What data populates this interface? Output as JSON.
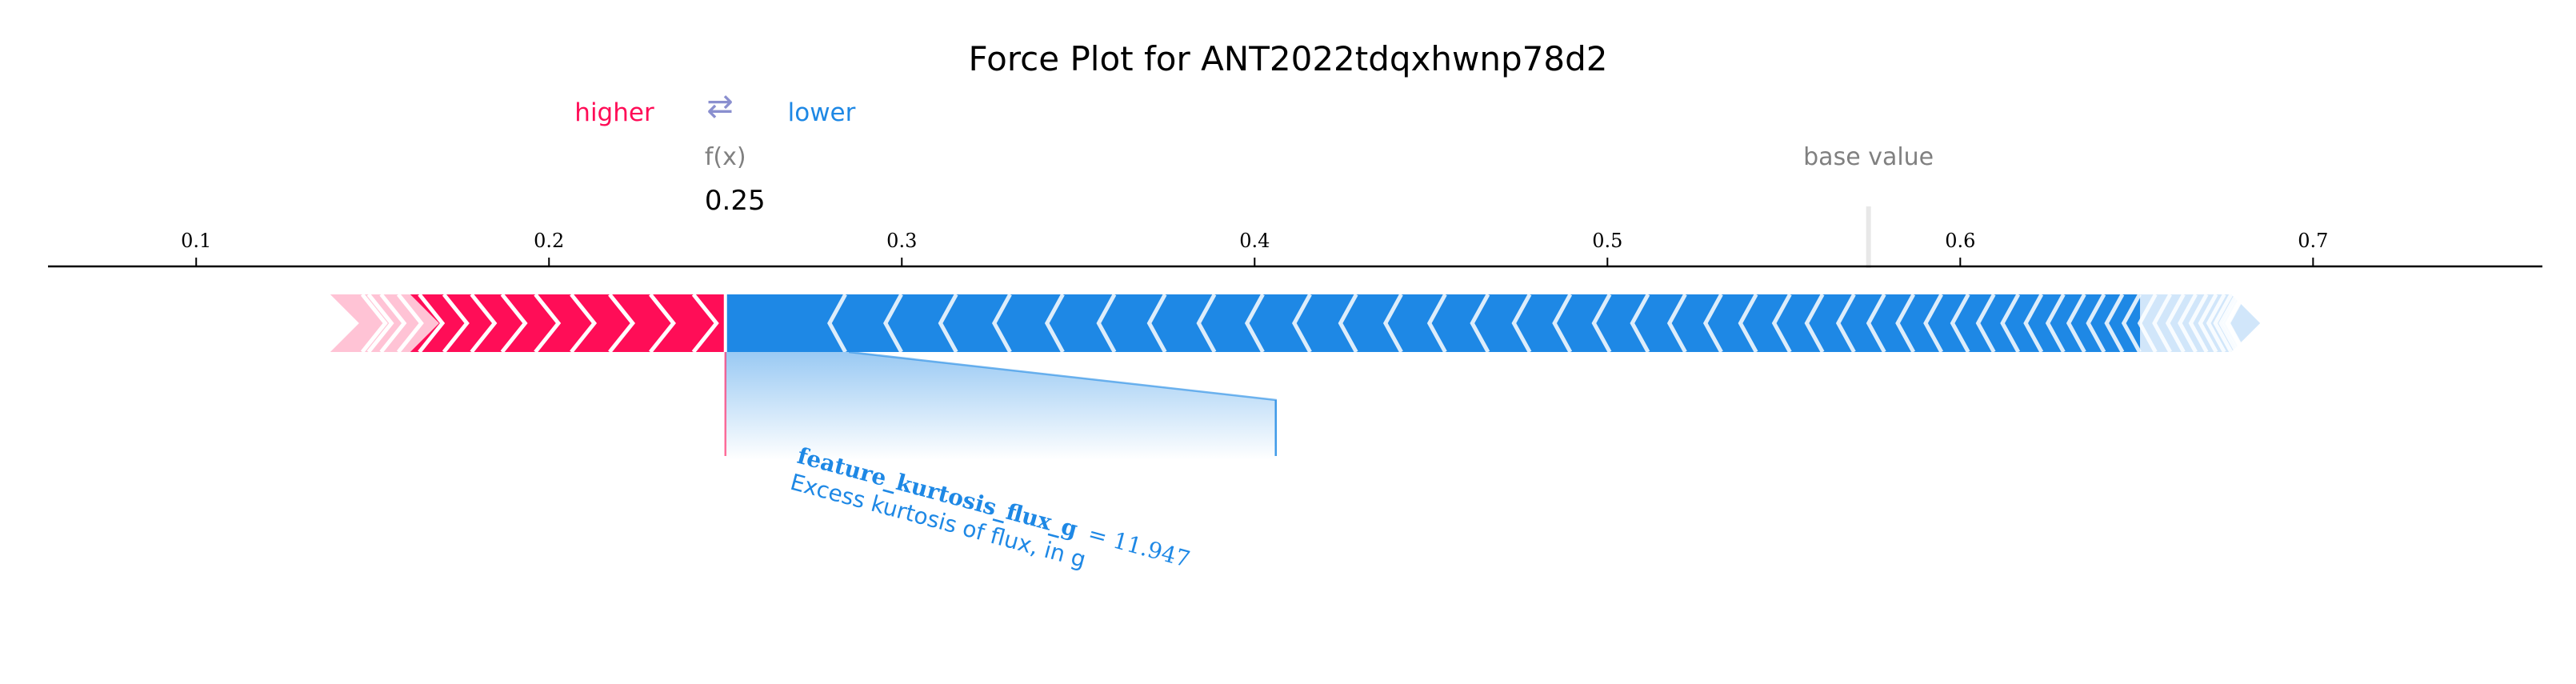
{
  "chart_data": {
    "type": "force",
    "title": "Force Plot for ANT2022tdqxhwnp78d2",
    "legend": {
      "higher": "higher",
      "arrows": "⇄",
      "lower": "lower"
    },
    "fx_label": "f(x)",
    "fx_value": 0.25,
    "fx_value_text": "0.25",
    "base_value_label": "base value",
    "base_value": 0.574,
    "xlim": [
      0.058,
      0.765
    ],
    "ticks": [
      {
        "value": 0.1,
        "label": "0.1"
      },
      {
        "value": 0.2,
        "label": "0.2"
      },
      {
        "value": 0.3,
        "label": "0.3"
      },
      {
        "value": 0.4,
        "label": "0.4"
      },
      {
        "value": 0.5,
        "label": "0.5"
      },
      {
        "value": 0.6,
        "label": "0.6"
      },
      {
        "value": 0.7,
        "label": "0.7"
      }
    ],
    "positive_region": [
      0.138,
      0.25
    ],
    "negative_region": [
      0.25,
      0.685
    ],
    "highlighted_feature": {
      "name": "feature_kurtosis_flux_g",
      "value_text": "= 11.947",
      "description": "Excess kurtosis of flux, in g",
      "start": 0.25,
      "end": 0.406
    }
  },
  "colors": {
    "positive": "#ff0d57",
    "positive_light": "#ffc3d5",
    "negative": "#1e88e5",
    "negative_light": "#d1e6fa",
    "axis": "#000000",
    "base_line": "#e8e8e8"
  }
}
